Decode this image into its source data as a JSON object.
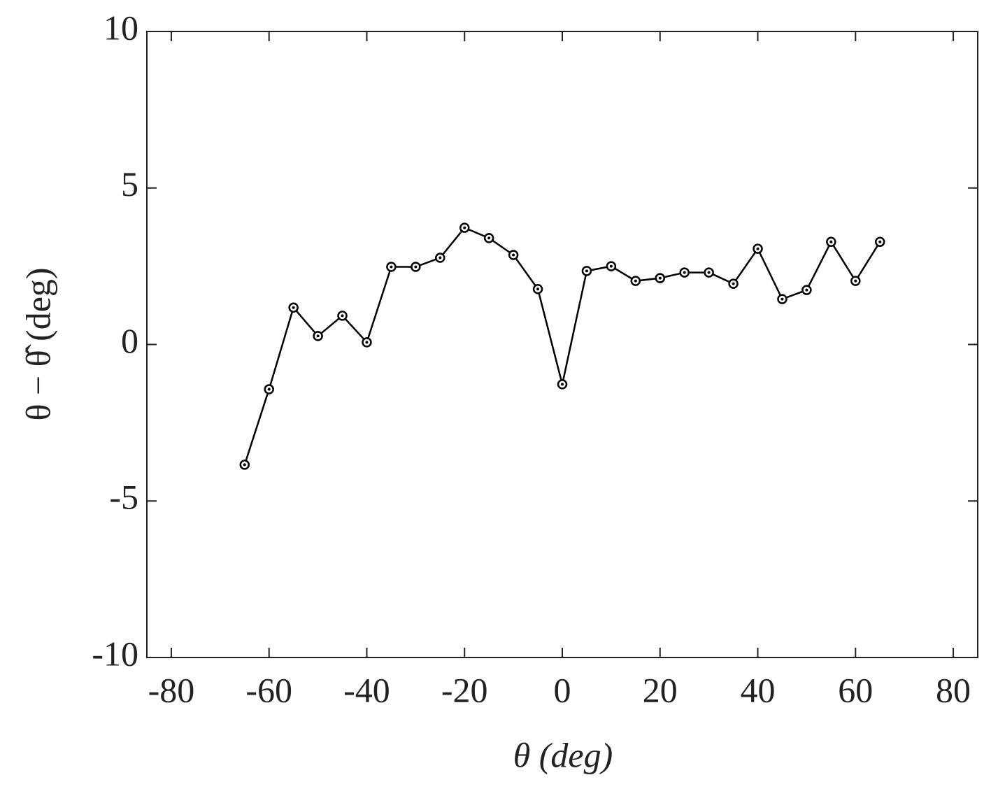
{
  "chart_data": {
    "type": "line",
    "xlabel": "θ (deg)",
    "ylabel": "θ − θ̂ (deg)",
    "x": [
      -65,
      -60,
      -55,
      -50,
      -45,
      -40,
      -35,
      -30,
      -25,
      -20,
      -15,
      -10,
      -5,
      0,
      5,
      10,
      15,
      20,
      25,
      30,
      35,
      40,
      45,
      50,
      55,
      60,
      65
    ],
    "series": [
      {
        "color": "#000000",
        "values": [
          -3.84,
          -1.43,
          1.18,
          0.27,
          0.92,
          0.07,
          2.48,
          2.48,
          2.77,
          3.73,
          3.4,
          2.86,
          1.77,
          -1.27,
          2.35,
          2.5,
          2.03,
          2.12,
          2.3,
          2.3,
          1.94,
          3.06,
          1.45,
          1.74,
          3.28,
          2.03,
          3.28
        ]
      }
    ],
    "xlim": [
      -85,
      85
    ],
    "xticks": [
      -80,
      -60,
      -40,
      -20,
      0,
      20,
      40,
      60,
      80
    ],
    "ylim": [
      -10,
      10
    ],
    "yticks": [
      -10,
      -5,
      0,
      5,
      10
    ],
    "grid": false
  }
}
